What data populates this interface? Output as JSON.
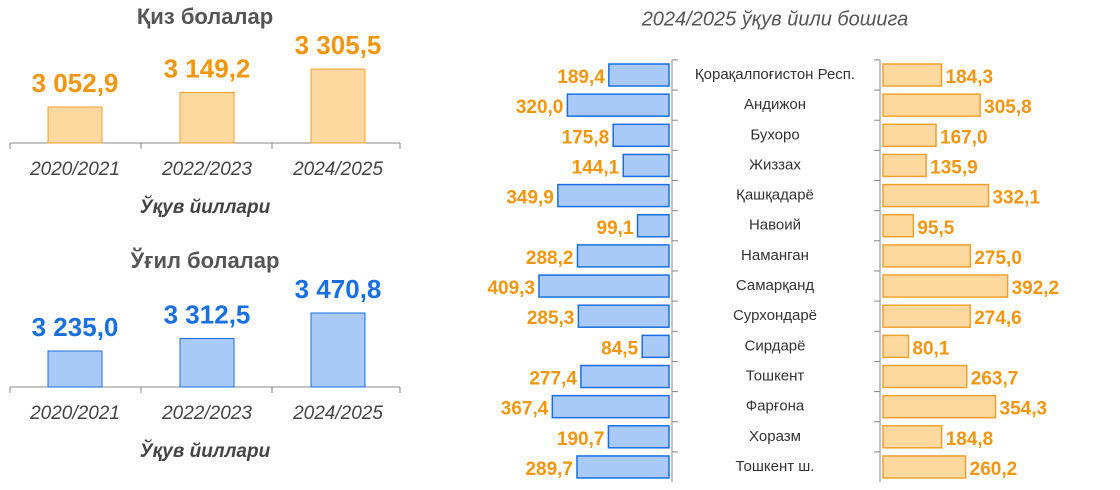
{
  "chart_data": [
    {
      "type": "bar",
      "title": "Қиз болалар",
      "x_label": "Ўқув йиллари",
      "categories": [
        "2020/2021",
        "2022/2023",
        "2024/2025"
      ],
      "values": [
        3052.9,
        3149.2,
        3305.5
      ],
      "value_labels": [
        "3 052,9",
        "3 149,2",
        "3 305,5"
      ],
      "color": "#fdd9a0",
      "label_color": "#f0960f"
    },
    {
      "type": "bar",
      "title": "Ўғил болалар",
      "x_label": "Ўқув йиллари",
      "categories": [
        "2020/2021",
        "2022/2023",
        "2024/2025"
      ],
      "values": [
        3235.0,
        3312.5,
        3470.8
      ],
      "value_labels": [
        "3 235,0",
        "3 312,5",
        "3 470,8"
      ],
      "color": "#a9c9f7",
      "label_color": "#1a6fe0"
    },
    {
      "type": "butterfly",
      "title": "2024/2025 ўқув йили бошига",
      "categories": [
        "Қорақалпоғистон Респ.",
        "Андижон",
        "Бухоро",
        "Жиззах",
        "Қашқадарё",
        "Навоий",
        "Наманган",
        "Самарқанд",
        "Сурхондарё",
        "Сирдарё",
        "Тошкент",
        "Фарғона",
        "Хоразм",
        "Тошкент ш."
      ],
      "series": [
        {
          "color": "#a9c9f7",
          "values": [
            189.4,
            320.0,
            175.8,
            144.1,
            349.9,
            99.1,
            288.2,
            409.3,
            285.3,
            84.5,
            277.4,
            367.4,
            190.7,
            289.7
          ],
          "value_labels": [
            "189,4",
            "320,0",
            "175,8",
            "144,1",
            "349,9",
            "99,1",
            "288,2",
            "409,3",
            "285,3",
            "84,5",
            "277,4",
            "367,4",
            "190,7",
            "289,7"
          ]
        },
        {
          "color": "#fdd9a0",
          "values": [
            184.3,
            305.8,
            167.0,
            135.9,
            332.1,
            95.5,
            275.0,
            392.2,
            274.6,
            80.1,
            263.7,
            354.3,
            184.8,
            260.2
          ],
          "value_labels": [
            "184,3",
            "305,8",
            "167,0",
            "135,9",
            "332,1",
            "95,5",
            "275,0",
            "392,2",
            "274,6",
            "80,1",
            "263,7",
            "354,3",
            "184,8",
            "260,2"
          ]
        }
      ]
    }
  ]
}
